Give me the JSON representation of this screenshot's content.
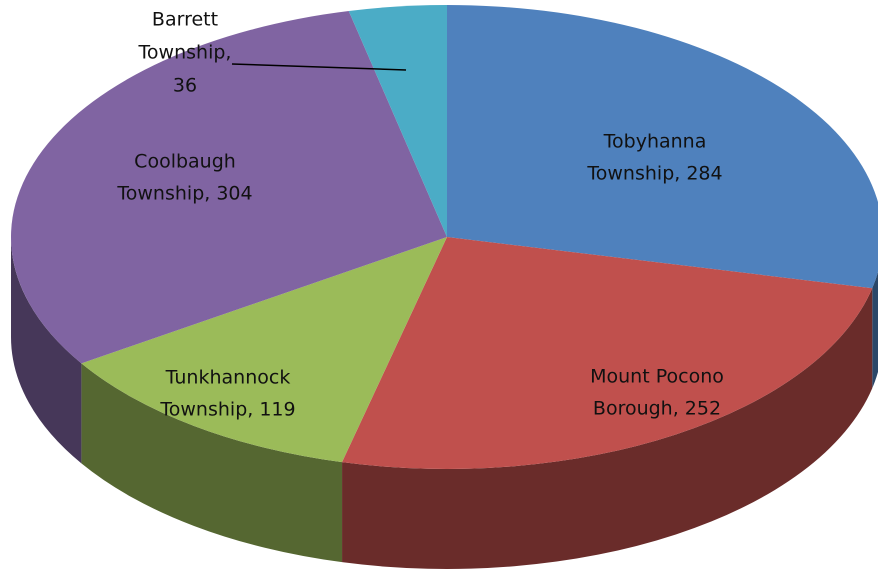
{
  "chart_data": {
    "type": "pie3d",
    "labels": [
      [
        "Tobyhanna",
        "Township, 284"
      ],
      [
        "Mount Pocono",
        "Borough, 252"
      ],
      [
        "Tunkhannock",
        "Township, 119"
      ],
      [
        "Coolbaugh",
        "Township, 304"
      ],
      [
        "Barrett",
        "Township,",
        "36"
      ]
    ],
    "values": [
      284,
      252,
      119,
      304,
      36
    ],
    "colors": [
      "#4f81bd",
      "#c0504d",
      "#9bbb59",
      "#8064a2",
      "#4bacc6"
    ],
    "start_angle": 0,
    "direction": "clockwise"
  }
}
